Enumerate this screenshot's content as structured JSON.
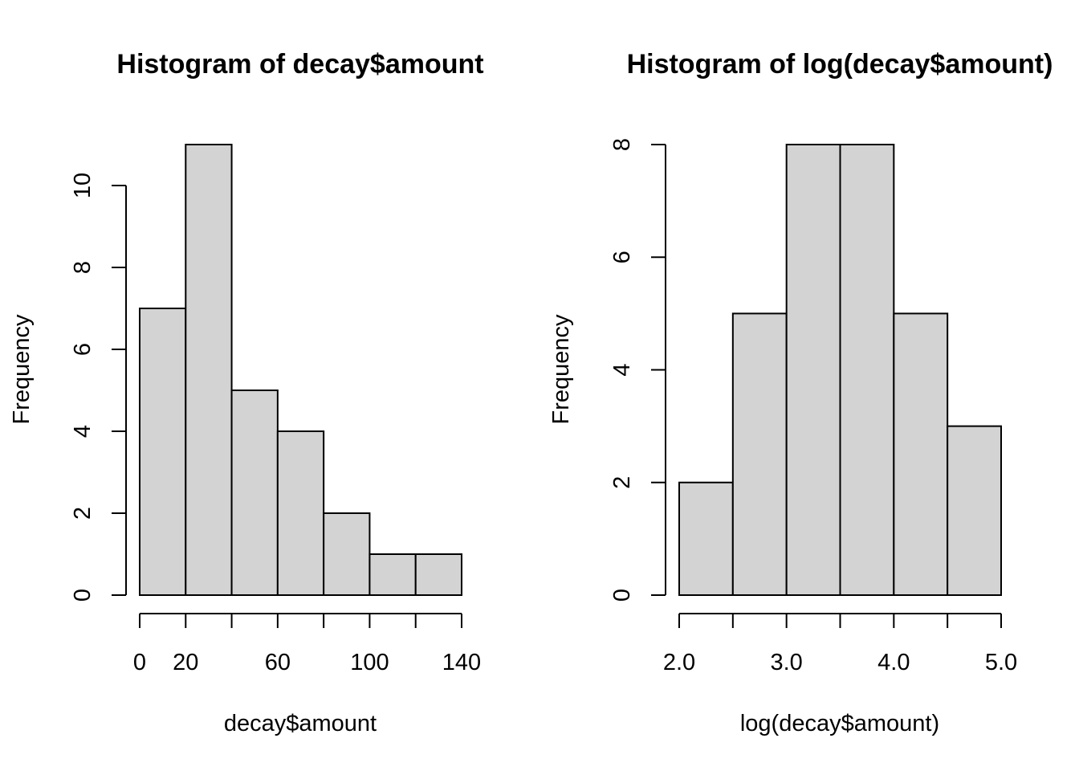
{
  "colors": {
    "bar_fill": "#d3d3d3",
    "bar_stroke": "#000000",
    "axis": "#000000",
    "background": "#ffffff"
  },
  "chart_data": [
    {
      "type": "bar",
      "subtype": "histogram",
      "title": "Histogram of decay$amount",
      "xlabel": "decay$amount",
      "ylabel": "Frequency",
      "bins": [
        {
          "x0": 0,
          "x1": 20,
          "count": 7
        },
        {
          "x0": 20,
          "x1": 40,
          "count": 11
        },
        {
          "x0": 40,
          "x1": 60,
          "count": 5
        },
        {
          "x0": 60,
          "x1": 80,
          "count": 4
        },
        {
          "x0": 80,
          "x1": 100,
          "count": 2
        },
        {
          "x0": 100,
          "x1": 120,
          "count": 1
        },
        {
          "x0": 120,
          "x1": 140,
          "count": 1
        }
      ],
      "xlim": [
        0,
        140
      ],
      "ylim": [
        0,
        11
      ],
      "x_ticks": [
        0,
        20,
        40,
        60,
        80,
        100,
        120,
        140
      ],
      "x_tick_labels": [
        "0",
        "20",
        "",
        "60",
        "",
        "100",
        "",
        "140"
      ],
      "y_ticks": [
        0,
        2,
        4,
        6,
        8,
        10
      ],
      "y_tick_labels": [
        "0",
        "2",
        "4",
        "6",
        "8",
        "10"
      ],
      "grid": false,
      "legend": "none"
    },
    {
      "type": "bar",
      "subtype": "histogram",
      "title": "Histogram of log(decay$amount)",
      "xlabel": "log(decay$amount)",
      "ylabel": "Frequency",
      "bins": [
        {
          "x0": 2.0,
          "x1": 2.5,
          "count": 2
        },
        {
          "x0": 2.5,
          "x1": 3.0,
          "count": 5
        },
        {
          "x0": 3.0,
          "x1": 3.5,
          "count": 8
        },
        {
          "x0": 3.5,
          "x1": 4.0,
          "count": 8
        },
        {
          "x0": 4.0,
          "x1": 4.5,
          "count": 5
        },
        {
          "x0": 4.5,
          "x1": 5.0,
          "count": 3
        }
      ],
      "xlim": [
        2.0,
        5.0
      ],
      "ylim": [
        0,
        8
      ],
      "x_ticks": [
        2.0,
        2.5,
        3.0,
        3.5,
        4.0,
        4.5,
        5.0
      ],
      "x_tick_labels": [
        "2.0",
        "",
        "3.0",
        "",
        "4.0",
        "",
        "5.0"
      ],
      "y_ticks": [
        0,
        2,
        4,
        6,
        8
      ],
      "y_tick_labels": [
        "0",
        "2",
        "4",
        "6",
        "8"
      ],
      "grid": false,
      "legend": "none"
    }
  ]
}
